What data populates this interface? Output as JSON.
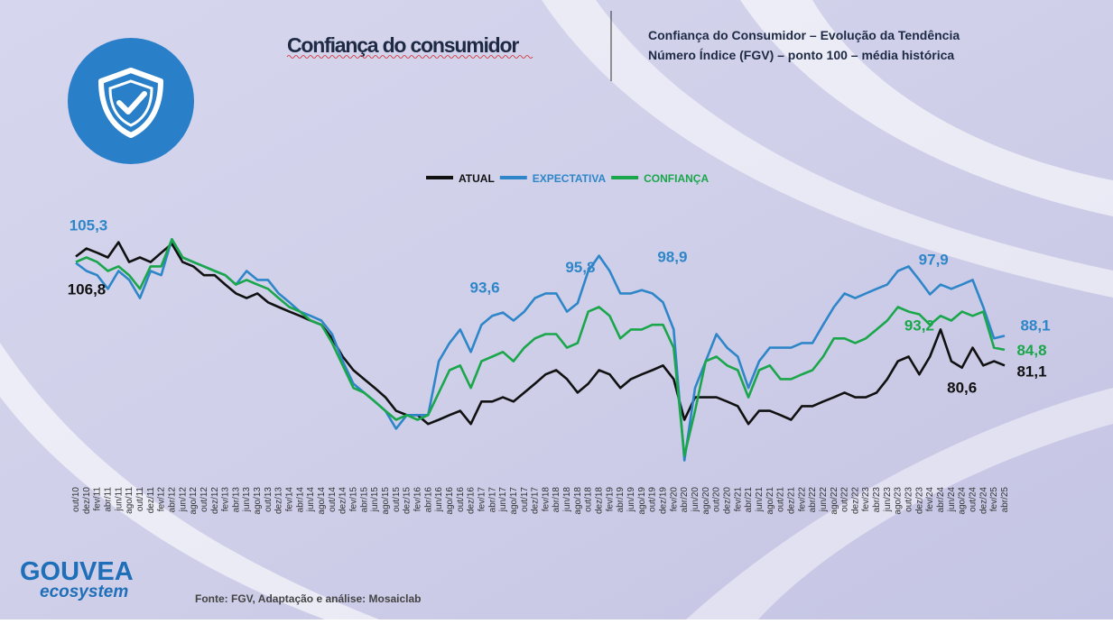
{
  "chart_data": {
    "type": "line",
    "title": "Confiança do consumidor",
    "subtitle": [
      "Confiança do Consumidor – Evolução da Tendência",
      "Número Índice (FGV) – ponto 100 – média histórica"
    ],
    "source": "Fonte: FGV, Adaptação e análise: Mosaiclab",
    "brand": [
      "GOUVEA",
      "ecosystem"
    ],
    "ylim": [
      55,
      125
    ],
    "categories": [
      "out/10",
      "dez/10",
      "fev/11",
      "abr/11",
      "jun/11",
      "ago/11",
      "out/11",
      "dez/11",
      "fev/12",
      "abr/12",
      "jun/12",
      "ago/12",
      "out/12",
      "dez/12",
      "fev/13",
      "abr/13",
      "jun/13",
      "ago/13",
      "out/13",
      "dez/13",
      "fev/14",
      "abr/14",
      "jun/14",
      "ago/14",
      "out/14",
      "dez/14",
      "fev/15",
      "abr/15",
      "jun/15",
      "ago/15",
      "out/15",
      "dez/15",
      "fev/16",
      "abr/16",
      "jun/16",
      "ago/16",
      "out/16",
      "dez/16",
      "fev/17",
      "abr/17",
      "jun/17",
      "ago/17",
      "out/17",
      "dez/17",
      "fev/18",
      "abr/18",
      "jun/18",
      "ago/18",
      "out/18",
      "dez/18",
      "fev/19",
      "abr/19",
      "jun/19",
      "ago/19",
      "out/19",
      "dez/19",
      "fev/20",
      "abr/20",
      "jun/20",
      "ago/20",
      "out/20",
      "dez/20",
      "fev/21",
      "abr/21",
      "jun/21",
      "ago/21",
      "out/21",
      "dez/21",
      "fev/22",
      "abr/22",
      "jun/22",
      "ago/22",
      "out/22",
      "dez/22",
      "fev/23",
      "abr/23",
      "jun/23",
      "ago/23",
      "out/23",
      "dez/23",
      "fev/24",
      "abr/24",
      "jun/24",
      "ago/24",
      "out/24",
      "dez/24",
      "fev/25",
      "abr/25"
    ],
    "series": [
      {
        "name": "ATUAL",
        "color": "#111111",
        "values": [
          106.8,
          108.7,
          107.7,
          106.6,
          110.2,
          105.5,
          106.6,
          105.5,
          107.7,
          109.8,
          105.5,
          104.5,
          102.4,
          102.4,
          100.2,
          98.1,
          97.0,
          98.1,
          96.0,
          94.9,
          93.8,
          92.8,
          91.7,
          90.7,
          87.5,
          83.2,
          80.0,
          77.9,
          75.8,
          73.6,
          70.4,
          69.4,
          69.4,
          67.3,
          68.3,
          69.4,
          70.4,
          67.3,
          72.6,
          72.6,
          73.6,
          72.6,
          74.7,
          76.8,
          79.0,
          80.0,
          77.9,
          74.7,
          76.8,
          80.0,
          79.0,
          75.8,
          77.9,
          79.0,
          80.0,
          81.1,
          77.9,
          68.3,
          73.6,
          73.6,
          73.6,
          72.6,
          71.5,
          67.3,
          70.4,
          70.4,
          69.4,
          68.3,
          71.5,
          71.5,
          72.6,
          73.6,
          74.7,
          73.6,
          73.6,
          74.7,
          77.9,
          82.1,
          83.2,
          79.0,
          83.2,
          89.6,
          82.1,
          80.6,
          85.3,
          81.1,
          82.1,
          81.1
        ],
        "value_labels": [
          "106,8",
          null,
          null,
          null,
          null,
          null,
          null,
          null,
          null,
          null,
          null,
          null,
          null,
          null,
          null,
          null,
          null,
          null,
          null,
          null,
          null,
          null,
          null,
          null,
          null,
          null,
          null,
          null,
          null,
          null,
          null,
          null,
          null,
          null,
          null,
          null,
          null,
          null,
          null,
          null,
          null,
          null,
          null,
          null,
          null,
          null,
          null,
          null,
          null,
          null,
          null,
          null,
          null,
          null,
          null,
          null,
          null,
          null,
          null,
          null,
          null,
          null,
          null,
          null,
          null,
          null,
          null,
          null,
          null,
          null,
          null,
          null,
          null,
          null,
          null,
          null,
          null,
          null,
          null,
          null,
          null,
          null,
          null,
          "80,6",
          null,
          null,
          null,
          "81,1"
        ]
      },
      {
        "name": "EXPECTATIVA",
        "color": "#2e86c8",
        "values": [
          105.3,
          103.4,
          102.4,
          99.2,
          103.4,
          101.3,
          97.0,
          103.4,
          102.4,
          110.9,
          106.6,
          105.5,
          104.5,
          103.4,
          102.4,
          100.2,
          103.4,
          101.3,
          101.3,
          98.1,
          96.0,
          93.8,
          92.8,
          91.7,
          88.5,
          82.1,
          76.8,
          74.7,
          72.6,
          70.4,
          66.2,
          69.4,
          69.4,
          69.4,
          82.1,
          86.4,
          89.6,
          84.3,
          90.7,
          92.8,
          93.6,
          91.7,
          93.8,
          97.0,
          98.1,
          98.1,
          93.8,
          95.8,
          103.4,
          107.0,
          103.4,
          98.1,
          98.1,
          98.9,
          98.1,
          96.0,
          89.6,
          58.7,
          75.8,
          82.1,
          88.5,
          85.3,
          83.2,
          75.8,
          82.1,
          85.3,
          85.3,
          85.3,
          86.4,
          86.4,
          90.7,
          94.9,
          98.1,
          97.0,
          98.1,
          99.2,
          100.2,
          103.4,
          104.5,
          101.3,
          97.9,
          100.2,
          99.2,
          100.2,
          101.3,
          94.9,
          87.5,
          88.1
        ],
        "value_labels": [
          "105,3",
          null,
          null,
          null,
          null,
          null,
          null,
          null,
          null,
          null,
          null,
          null,
          null,
          null,
          null,
          null,
          null,
          null,
          null,
          null,
          null,
          null,
          null,
          null,
          null,
          null,
          null,
          null,
          null,
          null,
          null,
          null,
          null,
          null,
          null,
          null,
          null,
          null,
          null,
          null,
          "93,6",
          null,
          null,
          null,
          null,
          null,
          null,
          "95,8",
          null,
          null,
          null,
          null,
          null,
          "98,9",
          null,
          null,
          null,
          null,
          null,
          null,
          null,
          null,
          null,
          null,
          null,
          null,
          null,
          null,
          null,
          null,
          null,
          null,
          null,
          null,
          null,
          null,
          null,
          null,
          null,
          null,
          "97,9",
          null,
          null,
          null,
          null,
          null,
          null,
          "88,1"
        ]
      },
      {
        "name": "CONFIANÇA",
        "color": "#1aa64a",
        "values": [
          105.5,
          106.6,
          105.5,
          103.4,
          104.5,
          102.4,
          99.2,
          104.5,
          104.5,
          110.9,
          106.6,
          105.5,
          104.5,
          103.4,
          102.4,
          100.2,
          101.3,
          100.2,
          99.2,
          97.0,
          94.9,
          93.8,
          91.7,
          90.7,
          86.4,
          81.1,
          75.8,
          74.7,
          72.6,
          70.4,
          68.3,
          69.4,
          68.3,
          69.4,
          74.7,
          80.0,
          81.1,
          75.8,
          82.1,
          83.2,
          84.3,
          82.1,
          85.3,
          87.5,
          88.5,
          88.5,
          85.3,
          86.4,
          93.8,
          94.9,
          92.8,
          87.5,
          89.6,
          89.6,
          90.7,
          90.7,
          85.3,
          59.8,
          70.4,
          82.1,
          83.2,
          81.1,
          80.0,
          73.6,
          80.0,
          81.1,
          77.9,
          77.9,
          79.0,
          80.0,
          83.2,
          87.5,
          87.5,
          86.4,
          87.5,
          89.6,
          91.7,
          94.9,
          93.8,
          93.2,
          90.7,
          92.8,
          91.7,
          93.8,
          92.8,
          93.8,
          85.3,
          84.8
        ],
        "value_labels": [
          null,
          null,
          null,
          null,
          null,
          null,
          null,
          null,
          null,
          null,
          null,
          null,
          null,
          null,
          null,
          null,
          null,
          null,
          null,
          null,
          null,
          null,
          null,
          null,
          null,
          null,
          null,
          null,
          null,
          null,
          null,
          null,
          null,
          null,
          null,
          null,
          null,
          null,
          null,
          null,
          null,
          null,
          null,
          null,
          null,
          null,
          null,
          null,
          null,
          null,
          null,
          null,
          null,
          null,
          null,
          null,
          null,
          null,
          null,
          null,
          null,
          null,
          null,
          null,
          null,
          null,
          null,
          null,
          null,
          null,
          null,
          null,
          null,
          null,
          null,
          null,
          null,
          null,
          null,
          "93,2",
          null,
          null,
          null,
          null,
          null,
          null,
          null,
          "84,8"
        ]
      }
    ]
  }
}
